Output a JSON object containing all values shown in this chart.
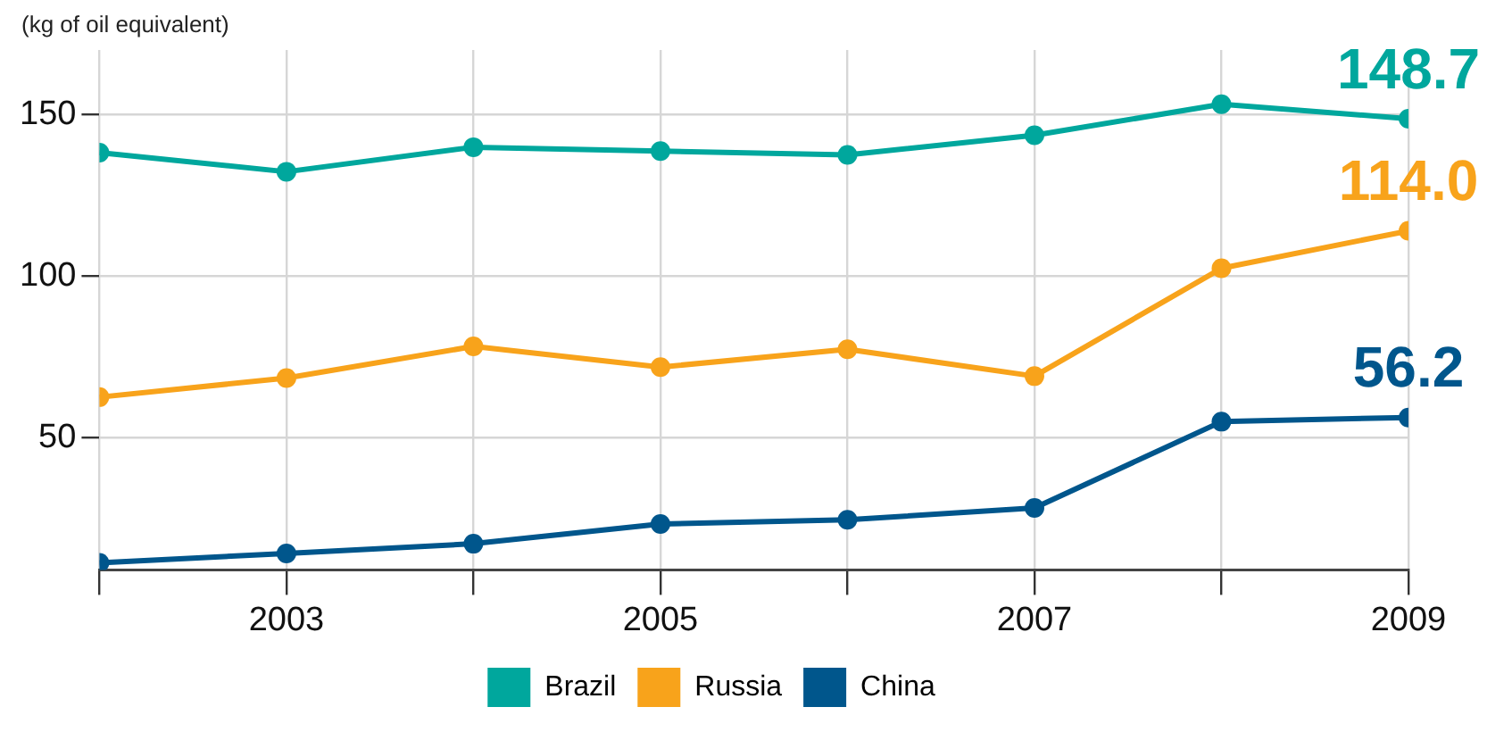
{
  "chart_data": {
    "type": "line",
    "ylabel": "(kg of oil equivalent)",
    "x": [
      2002,
      2003,
      2004,
      2005,
      2006,
      2007,
      2008,
      2009
    ],
    "xlim": [
      2002,
      2009
    ],
    "xticks": [
      {
        "value": 2002,
        "label": null
      },
      2003,
      {
        "value": 2004,
        "label": null
      },
      2005,
      {
        "value": 2006,
        "label": null
      },
      2007,
      {
        "value": 2008,
        "label": null
      },
      2009
    ],
    "ylim": [
      9,
      170
    ],
    "yticks": [
      50,
      100,
      150
    ],
    "grid": true,
    "legend": "bottom",
    "marker": "circle",
    "line_style": "solid",
    "series": [
      {
        "name": "Brazil",
        "color": "#00a79d",
        "values": [
          138.2,
          132.3,
          139.9,
          138.7,
          137.5,
          143.6,
          153.2,
          148.7
        ],
        "value_labels": [
          null,
          null,
          null,
          null,
          null,
          null,
          null,
          "148.7"
        ]
      },
      {
        "name": "Russia",
        "color": "#f8a31b",
        "values": [
          62.5,
          68.4,
          78.2,
          71.8,
          77.3,
          69.0,
          102.4,
          114.0
        ],
        "value_labels": [
          null,
          null,
          null,
          null,
          null,
          null,
          null,
          "114.0"
        ]
      },
      {
        "name": "China",
        "color": "#00568c",
        "values": [
          11.2,
          14.1,
          17.1,
          23.2,
          24.5,
          28.2,
          54.9,
          56.2
        ],
        "value_labels": [
          null,
          null,
          null,
          null,
          null,
          null,
          null,
          "56.2"
        ]
      }
    ]
  }
}
